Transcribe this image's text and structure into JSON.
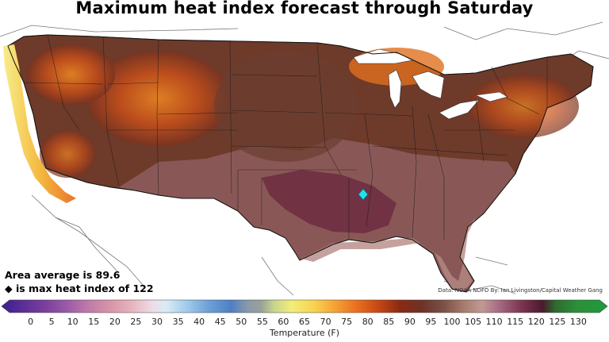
{
  "title": "Maximum heat index forecast through Saturday",
  "stats": {
    "area_average": "Area average is 89.6",
    "max_note": "◆ is max heat index of 122"
  },
  "credit": "Data: NOAA NDFD  By: Ian Livingston/Capital Weather Gang",
  "marker": {
    "icon": "diamond-icon",
    "color": "#22e0f0",
    "value": 122
  },
  "colorbar": {
    "label": "Temperature (F)",
    "ticks": [
      "0",
      "5",
      "10",
      "15",
      "20",
      "25",
      "30",
      "35",
      "40",
      "45",
      "50",
      "55",
      "60",
      "65",
      "70",
      "75",
      "80",
      "85",
      "90",
      "95",
      "100",
      "105",
      "110",
      "115",
      "120",
      "125",
      "130"
    ],
    "min": -5,
    "max": 135,
    "stops": [
      {
        "v": -5,
        "c": "#3b1e8f"
      },
      {
        "v": 5,
        "c": "#7a3f9c"
      },
      {
        "v": 10,
        "c": "#9a5aa8"
      },
      {
        "v": 15,
        "c": "#c07aa8"
      },
      {
        "v": 20,
        "c": "#d894a8"
      },
      {
        "v": 25,
        "c": "#e6b4bd"
      },
      {
        "v": 30,
        "c": "#eedde8"
      },
      {
        "v": 33,
        "c": "#d9ecf6"
      },
      {
        "v": 38,
        "c": "#9ec9ea"
      },
      {
        "v": 43,
        "c": "#6c9fd6"
      },
      {
        "v": 48,
        "c": "#4f7fc4"
      },
      {
        "v": 52,
        "c": "#8a9aa8"
      },
      {
        "v": 55,
        "c": "#9aa19a"
      },
      {
        "v": 58,
        "c": "#c9d58c"
      },
      {
        "v": 62,
        "c": "#f2ee79"
      },
      {
        "v": 67,
        "c": "#f8d452"
      },
      {
        "v": 72,
        "c": "#f5a236"
      },
      {
        "v": 77,
        "c": "#ea7020"
      },
      {
        "v": 82,
        "c": "#c84814"
      },
      {
        "v": 87,
        "c": "#8a2b12"
      },
      {
        "v": 92,
        "c": "#6e3225"
      },
      {
        "v": 97,
        "c": "#7a5046"
      },
      {
        "v": 102,
        "c": "#a97d6e"
      },
      {
        "v": 106,
        "c": "#c09a93"
      },
      {
        "v": 110,
        "c": "#a66a82"
      },
      {
        "v": 115,
        "c": "#7e3550"
      },
      {
        "v": 120,
        "c": "#4a1a2e"
      },
      {
        "v": 123,
        "c": "#2d6b2e"
      },
      {
        "v": 128,
        "c": "#2c8f3a"
      },
      {
        "v": 135,
        "c": "#1f9a3c"
      }
    ]
  }
}
